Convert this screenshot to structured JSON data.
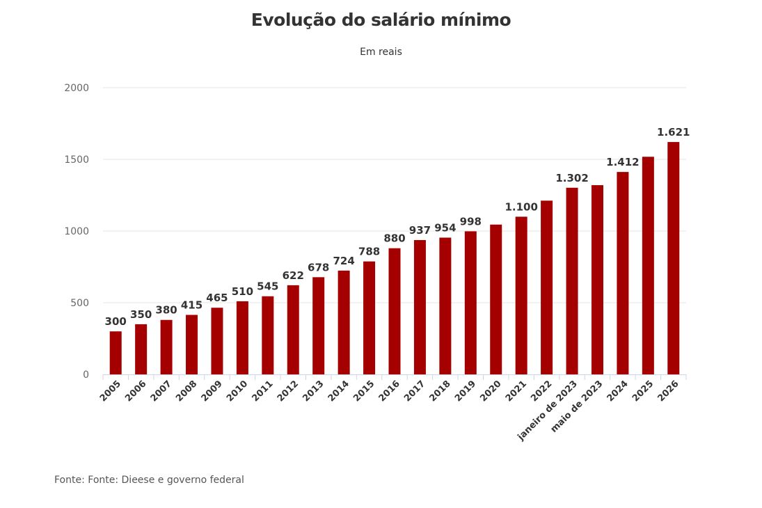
{
  "chart_data": {
    "type": "bar",
    "title": "Evolução do salário mínimo",
    "subtitle": "Em reais",
    "source": "Fonte: Fonte: Dieese e governo federal",
    "categories": [
      "2005",
      "2006",
      "2007",
      "2008",
      "2009",
      "2010",
      "2011",
      "2012",
      "2013",
      "2014",
      "2015",
      "2016",
      "2017",
      "2018",
      "2019",
      "2020",
      "2021",
      "2022",
      "janeiro de 2023",
      "maio de 2023",
      "2024",
      "2025",
      "2026"
    ],
    "values": [
      300,
      350,
      380,
      415,
      465,
      510,
      545,
      622,
      678,
      724,
      788,
      880,
      937,
      954,
      998,
      1045,
      1100,
      1212,
      1302,
      1320,
      1412,
      1518,
      1621
    ],
    "data_labels": [
      "300",
      "350",
      "380",
      "415",
      "465",
      "510",
      "545",
      "622",
      "678",
      "724",
      "788",
      "880",
      "937",
      "954",
      "998",
      "",
      "1.100",
      "",
      "1.302",
      "",
      "1.412",
      "",
      "1.621"
    ],
    "ylim": [
      0,
      2000
    ],
    "yticks": [
      0,
      500,
      1000,
      1500,
      2000
    ],
    "bar_color": "#a50000",
    "grid_color": "#e6e6e6",
    "xlabel": "",
    "ylabel": ""
  }
}
